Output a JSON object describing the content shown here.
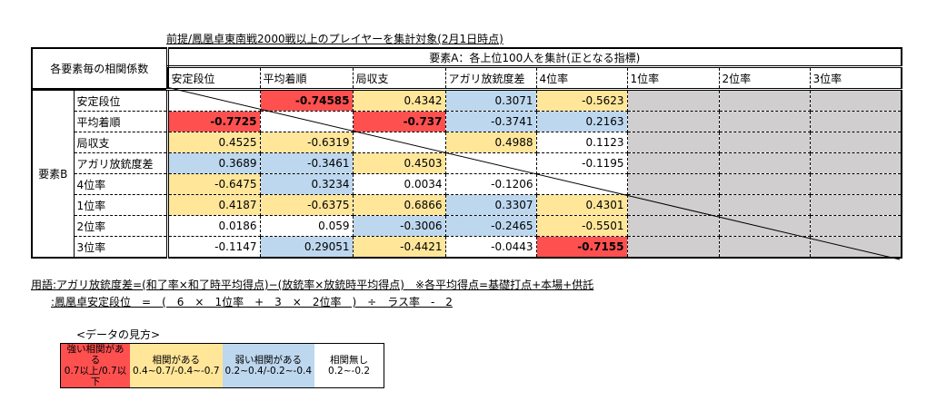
{
  "title": "前提/鳳凰卓東南戦2000戦以上のプレイヤーを集計対象(2月1日時点)",
  "corner_label": "各要素毎の相関係数",
  "element_a_label": "要素A：各上位100人を集計(正となる指標)",
  "element_b_label": "要素B",
  "columns": [
    "安定段位",
    "平均着順",
    "局収支",
    "アガリ放銃度差",
    "4位率",
    "1位率",
    "2位率",
    "3位率"
  ],
  "rows": [
    {
      "label": "安定段位",
      "cells": [
        {
          "v": "",
          "c": "w"
        },
        {
          "v": "-0.74585",
          "c": "r",
          "bold": true
        },
        {
          "v": "0.4342",
          "c": "y"
        },
        {
          "v": "0.3071",
          "c": "b"
        },
        {
          "v": "-0.5623",
          "c": "y"
        },
        {
          "v": "",
          "c": "g"
        },
        {
          "v": "",
          "c": "g"
        },
        {
          "v": "",
          "c": "g"
        }
      ]
    },
    {
      "label": "平均着順",
      "cells": [
        {
          "v": "-0.7725",
          "c": "r",
          "bold": true
        },
        {
          "v": "",
          "c": "w"
        },
        {
          "v": "-0.737",
          "c": "r",
          "bold": true
        },
        {
          "v": "-0.3741",
          "c": "b"
        },
        {
          "v": "0.2163",
          "c": "b"
        },
        {
          "v": "",
          "c": "g"
        },
        {
          "v": "",
          "c": "g"
        },
        {
          "v": "",
          "c": "g"
        }
      ]
    },
    {
      "label": "局収支",
      "cells": [
        {
          "v": "0.4525",
          "c": "y"
        },
        {
          "v": "-0.6319",
          "c": "y"
        },
        {
          "v": "",
          "c": "w"
        },
        {
          "v": "0.4988",
          "c": "y"
        },
        {
          "v": "0.1123",
          "c": "w"
        },
        {
          "v": "",
          "c": "g"
        },
        {
          "v": "",
          "c": "g"
        },
        {
          "v": "",
          "c": "g"
        }
      ]
    },
    {
      "label": "アガリ放銃度差",
      "cells": [
        {
          "v": "0.3689",
          "c": "b"
        },
        {
          "v": "-0.3461",
          "c": "b"
        },
        {
          "v": "0.4503",
          "c": "y"
        },
        {
          "v": "",
          "c": "w"
        },
        {
          "v": "-0.1195",
          "c": "w"
        },
        {
          "v": "",
          "c": "g"
        },
        {
          "v": "",
          "c": "g"
        },
        {
          "v": "",
          "c": "g"
        }
      ]
    },
    {
      "label": "4位率",
      "cells": [
        {
          "v": "-0.6475",
          "c": "y"
        },
        {
          "v": "0.3234",
          "c": "b"
        },
        {
          "v": "0.0034",
          "c": "w"
        },
        {
          "v": "-0.1206",
          "c": "w"
        },
        {
          "v": "",
          "c": "w"
        },
        {
          "v": "",
          "c": "g"
        },
        {
          "v": "",
          "c": "g"
        },
        {
          "v": "",
          "c": "g"
        }
      ]
    },
    {
      "label": "1位率",
      "cells": [
        {
          "v": "0.4187",
          "c": "y"
        },
        {
          "v": "-0.6375",
          "c": "y"
        },
        {
          "v": "0.6866",
          "c": "y"
        },
        {
          "v": "0.3307",
          "c": "b"
        },
        {
          "v": "0.4301",
          "c": "y"
        },
        {
          "v": "",
          "c": "g"
        },
        {
          "v": "",
          "c": "g"
        },
        {
          "v": "",
          "c": "g"
        }
      ]
    },
    {
      "label": "2位率",
      "cells": [
        {
          "v": "0.0186",
          "c": "w"
        },
        {
          "v": "0.059",
          "c": "w"
        },
        {
          "v": "-0.3006",
          "c": "b"
        },
        {
          "v": "-0.2465",
          "c": "b"
        },
        {
          "v": "-0.5501",
          "c": "y"
        },
        {
          "v": "",
          "c": "g"
        },
        {
          "v": "",
          "c": "g"
        },
        {
          "v": "",
          "c": "g"
        }
      ]
    },
    {
      "label": "3位率",
      "cells": [
        {
          "v": "-0.1147",
          "c": "w"
        },
        {
          "v": "0.29051",
          "c": "b"
        },
        {
          "v": "-0.4421",
          "c": "y"
        },
        {
          "v": "-0.0443",
          "c": "w"
        },
        {
          "v": "-0.7155",
          "c": "r",
          "bold": true
        },
        {
          "v": "",
          "c": "g"
        },
        {
          "v": "",
          "c": "g"
        },
        {
          "v": "",
          "c": "g"
        }
      ]
    }
  ],
  "notes": {
    "line1": "用語:アガリ放銃度差=(和了率×和了時平均得点)−(放銃率×放銃時平均得点)　※各平均得点=基礎打点+本場+供託",
    "line2": ":鳳凰卓安定段位　=　(　6　×　1位率　+　3　×　2位率　)　÷　ラス率　-　2"
  },
  "legend": {
    "label": "<データの見方>",
    "items": [
      {
        "title": "強い相関がある",
        "range": "0.7以上/0.7以下",
        "color": "#ff5050"
      },
      {
        "title": "相関がある",
        "range": "0.4~0.7/-0.4~-0.7",
        "color": "#ffe699"
      },
      {
        "title": "弱い相関がある",
        "range": "0.2~0.4/-0.2~-0.4",
        "color": "#bdd7ee"
      },
      {
        "title": "相関無し",
        "range": "0.2~-0.2",
        "color": "#ffffff"
      }
    ]
  },
  "colors": {
    "strong": "#ff5050",
    "moderate": "#ffe699",
    "weak": "#bdd7ee",
    "none": "#ffffff",
    "unused": "#d0cece"
  }
}
